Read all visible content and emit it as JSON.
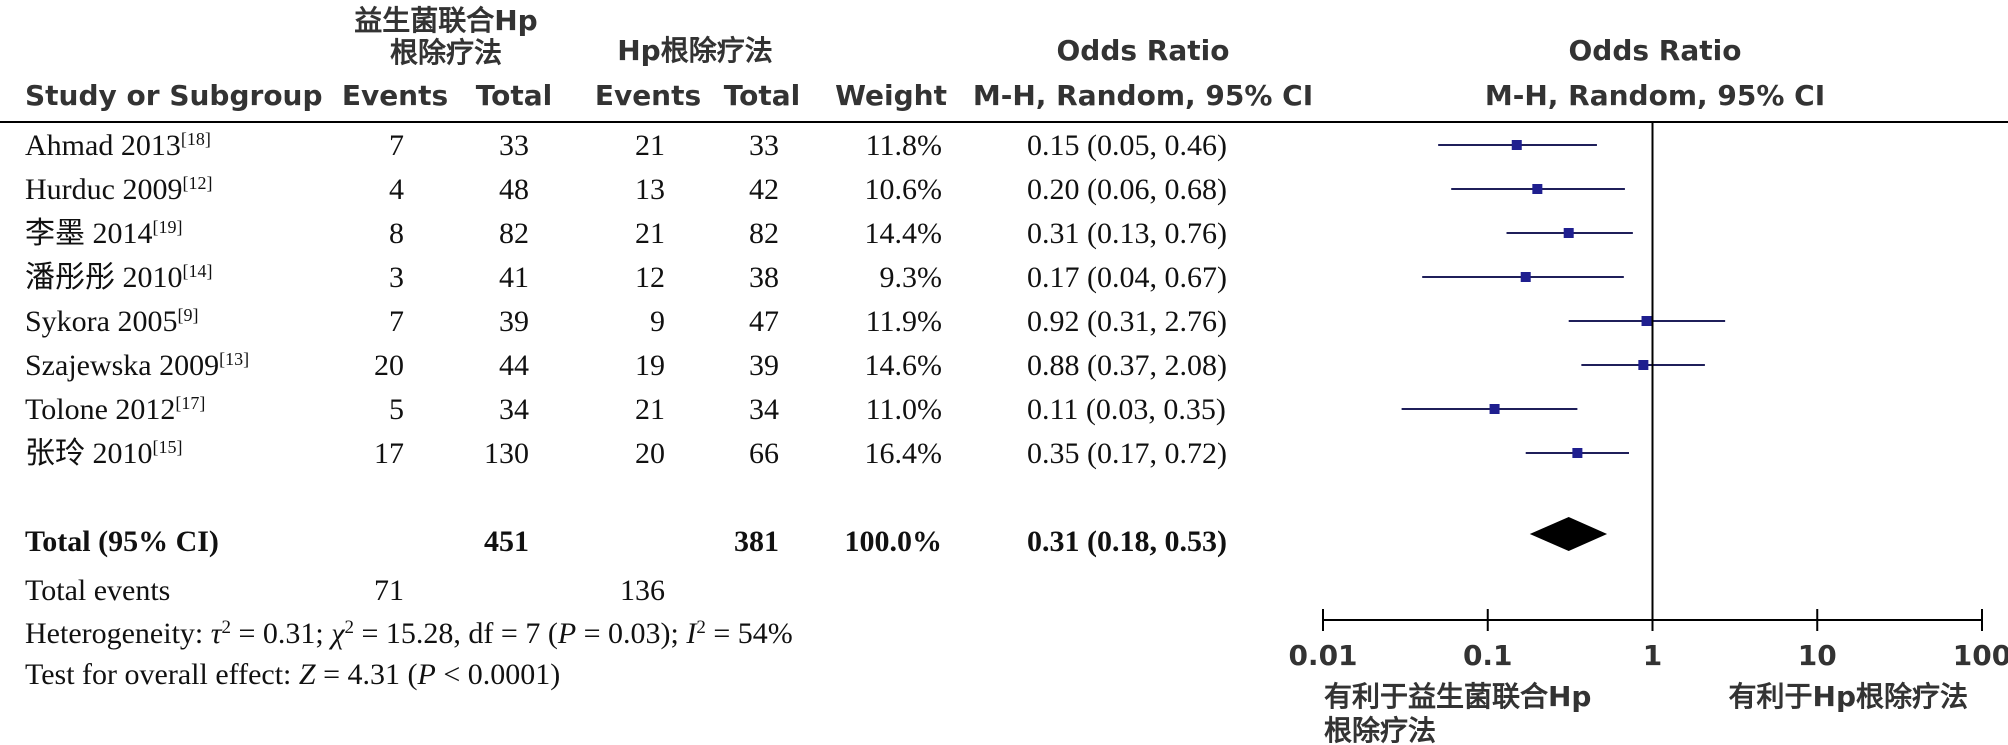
{
  "header": {
    "group1_title_line1": "益生菌联合Hp",
    "group1_title_line2": "根除疗法",
    "group2_title": "Hp根除疗法",
    "or_title": "Odds Ratio",
    "or_method": "M-H, Random, 95% CI",
    "plot_title": "Odds Ratio",
    "plot_method": "M-H, Random, 95% CI",
    "col_study": "Study or Subgroup",
    "col_events1": "Events",
    "col_total1": "Total",
    "col_events2": "Events",
    "col_total2": "Total",
    "col_weight": "Weight"
  },
  "chart_data": {
    "type": "forest",
    "scale": "log",
    "xlim": [
      0.01,
      100
    ],
    "ticks": [
      {
        "value": 0.01,
        "label": "0.01"
      },
      {
        "value": 0.1,
        "label": "0.1"
      },
      {
        "value": 1,
        "label": "1"
      },
      {
        "value": 10,
        "label": "10"
      },
      {
        "value": 100,
        "label": "100"
      }
    ],
    "reference_line": 1,
    "favours_left_line1": "有利于益生菌联合Hp",
    "favours_left_line2": "根除疗法",
    "favours_right": "有利于Hp根除疗法",
    "studies": [
      {
        "name": "Ahmad 2013",
        "ref": "[18]",
        "events1": 7,
        "total1": 33,
        "events2": 21,
        "total2": 33,
        "weight": "11.8%",
        "ci_text": "0.15 (0.05, 0.46)",
        "or": 0.15,
        "lower": 0.05,
        "upper": 0.46
      },
      {
        "name": "Hurduc 2009",
        "ref": "[12]",
        "events1": 4,
        "total1": 48,
        "events2": 13,
        "total2": 42,
        "weight": "10.6%",
        "ci_text": "0.20 (0.06, 0.68)",
        "or": 0.2,
        "lower": 0.06,
        "upper": 0.68
      },
      {
        "name": "李墨 2014",
        "ref": "[19]",
        "events1": 8,
        "total1": 82,
        "events2": 21,
        "total2": 82,
        "weight": "14.4%",
        "ci_text": "0.31 (0.13, 0.76)",
        "or": 0.31,
        "lower": 0.13,
        "upper": 0.76
      },
      {
        "name": "潘彤彤 2010",
        "ref": "[14]",
        "events1": 3,
        "total1": 41,
        "events2": 12,
        "total2": 38,
        "weight": "9.3%",
        "ci_text": "0.17 (0.04, 0.67)",
        "or": 0.17,
        "lower": 0.04,
        "upper": 0.67
      },
      {
        "name": "Sykora 2005",
        "ref": "[9]",
        "events1": 7,
        "total1": 39,
        "events2": 9,
        "total2": 47,
        "weight": "11.9%",
        "ci_text": "0.92 (0.31, 2.76)",
        "or": 0.92,
        "lower": 0.31,
        "upper": 2.76
      },
      {
        "name": "Szajewska 2009",
        "ref": "[13]",
        "events1": 20,
        "total1": 44,
        "events2": 19,
        "total2": 39,
        "weight": "14.6%",
        "ci_text": "0.88 (0.37, 2.08)",
        "or": 0.88,
        "lower": 0.37,
        "upper": 2.08
      },
      {
        "name": "Tolone 2012",
        "ref": "[17]",
        "events1": 5,
        "total1": 34,
        "events2": 21,
        "total2": 34,
        "weight": "11.0%",
        "ci_text": "0.11 (0.03, 0.35)",
        "or": 0.11,
        "lower": 0.03,
        "upper": 0.35
      },
      {
        "name": "张玲 2010",
        "ref": "[15]",
        "events1": 17,
        "total1": 130,
        "events2": 20,
        "total2": 66,
        "weight": "16.4%",
        "ci_text": "0.35 (0.17, 0.72)",
        "or": 0.35,
        "lower": 0.17,
        "upper": 0.72
      }
    ],
    "total": {
      "label": "Total (95% CI)",
      "total1": 451,
      "total2": 381,
      "weight": "100.0%",
      "ci_text": "0.31 (0.18, 0.53)",
      "or": 0.31,
      "lower": 0.18,
      "upper": 0.53
    },
    "total_events": {
      "label": "Total events",
      "events1": 71,
      "events2": 136
    },
    "heterogeneity": {
      "prefix": "Heterogeneity: ",
      "tau_sym": "τ",
      "tau_part": " = 0.31; ",
      "chi_sym": "χ",
      "chi_part": " = 15.28, df = 7 (",
      "p_sym": "P",
      "p_part": " = 0.03); ",
      "i_sym": "I",
      "i_part": " = 54%",
      "sup": "2"
    },
    "overall_effect": {
      "prefix": "Test for overall effect: ",
      "z_sym": "Z",
      "z_part": " = 4.31 (",
      "p_sym": "P",
      "p_part": " < 0.0001)"
    },
    "colors": {
      "marker": "#1f1f8f",
      "line": "#1f1f5a",
      "diamond": "#000000"
    }
  }
}
